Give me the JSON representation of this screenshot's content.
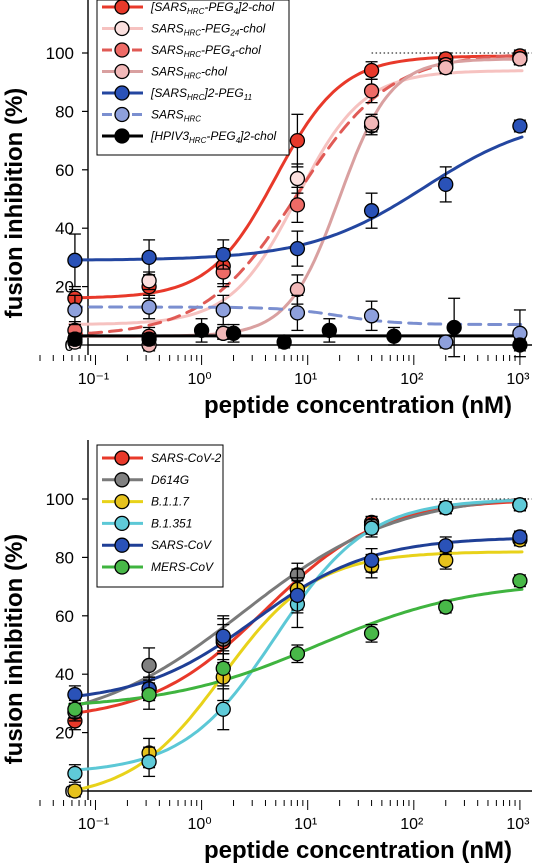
{
  "chart_data": [
    {
      "type": "scatter",
      "title": "",
      "xlabel": "peptide concentration (nM)",
      "ylabel": "fusion inhibition (%)",
      "xscale": "log",
      "xlim": [
        0.03,
        1300
      ],
      "ylim": [
        -5,
        108
      ],
      "x_ticks": [
        0.1,
        1,
        10,
        100,
        1000
      ],
      "x_tick_labels": [
        "10⁻¹",
        "10⁰",
        "10¹",
        "10²",
        "10³"
      ],
      "y_ticks": [
        0,
        20,
        40,
        60,
        80,
        100
      ],
      "reference_line": 100,
      "legend_position": "top-left",
      "series": [
        {
          "name": "[SARSHRC-PEG4]2-chol",
          "legend": {
            "pre": "[SARS",
            "sub": "HRC",
            "mid": "-PEG",
            "sub2": "4",
            "post": "]2-chol"
          },
          "color": "#e8392a",
          "marker_fill": "#e8392a",
          "line": "solid",
          "x": [
            0.064,
            0.32,
            1.6,
            8,
            40,
            200,
            1000
          ],
          "y": [
            16,
            20,
            27,
            70,
            94,
            98,
            99
          ],
          "err": [
            3,
            4,
            6,
            9,
            3,
            2,
            2
          ]
        },
        {
          "name": "SARSHRC-PEG24-chol",
          "legend": {
            "pre": "SARS",
            "sub": "HRC",
            "mid": "-PEG",
            "sub2": "24",
            "post": "-chol"
          },
          "color": "#f6c2c0",
          "marker_fill": "#fbe0df",
          "line": "solid",
          "x": [
            0.064,
            0.32,
            1.6,
            8,
            40,
            200,
            1000
          ],
          "y": [
            1,
            22,
            4,
            57,
            75,
            95,
            98
          ],
          "err": [
            2,
            3,
            2,
            5,
            3,
            2,
            2
          ]
        },
        {
          "name": "SARSHRC-PEG4-chol",
          "legend": {
            "pre": "SARS",
            "sub": "HRC",
            "mid": "-PEG",
            "sub2": "4",
            "post": "-chol"
          },
          "color": "#e05a55",
          "marker_fill": "#ee6b66",
          "line": "dashed",
          "x": [
            0.064,
            0.32,
            1.6,
            8,
            40,
            200,
            1000
          ],
          "y": [
            5,
            3,
            25,
            48,
            87,
            96,
            98
          ],
          "err": [
            3,
            3,
            5,
            6,
            4,
            2,
            2
          ]
        },
        {
          "name": "SARSHRC-chol",
          "legend": {
            "pre": "SARS",
            "sub": "HRC",
            "mid": "-chol",
            "sub2": "",
            "post": ""
          },
          "color": "#d9a0a0",
          "marker_fill": "#f2b8b8",
          "line": "solid",
          "x": [
            0.064,
            0.32,
            1.6,
            8,
            40,
            200,
            1000
          ],
          "y": [
            2,
            0,
            4,
            19,
            76,
            95,
            98
          ],
          "err": [
            2,
            2,
            2,
            5,
            3,
            2,
            2
          ]
        },
        {
          "name": "[SARSHRC]2-PEG11",
          "legend": {
            "pre": "[SARS",
            "sub": "HRC",
            "mid": "]2-PEG",
            "sub2": "11",
            "post": ""
          },
          "color": "#2346a0",
          "marker_fill": "#2a52b8",
          "line": "solid",
          "x": [
            0.064,
            0.32,
            1.6,
            8,
            40,
            200,
            1000
          ],
          "y": [
            29,
            30,
            31,
            33,
            46,
            55,
            75
          ],
          "err": [
            9,
            6,
            5,
            6,
            6,
            6,
            2
          ]
        },
        {
          "name": "SARSHRC",
          "legend": {
            "pre": "SARS",
            "sub": "HRC",
            "mid": "",
            "sub2": "",
            "post": ""
          },
          "color": "#7b8fd0",
          "marker_fill": "#8ea0dc",
          "line": "dashed",
          "x": [
            0.064,
            0.32,
            1.6,
            8,
            40,
            200,
            1000
          ],
          "y": [
            12,
            13,
            12,
            11,
            10,
            1,
            4
          ],
          "err": [
            5,
            4,
            5,
            6,
            5,
            2,
            8
          ]
        },
        {
          "name": "[HPIV3HRC-PEG4]2-chol",
          "legend": {
            "pre": "[HPIV3",
            "sub": "HRC",
            "mid": "-PEG",
            "sub2": "4",
            "post": "]2-chol"
          },
          "color": "#000000",
          "marker_fill": "#000000",
          "line": "solid",
          "x": [
            0.064,
            0.32,
            1.0,
            2.0,
            6.0,
            16,
            65,
            240,
            1000
          ],
          "y": [
            2,
            2,
            5,
            4,
            1,
            5,
            3,
            6,
            0
          ],
          "err": [
            2,
            2,
            4,
            3,
            2,
            4,
            3,
            10,
            2
          ]
        }
      ]
    },
    {
      "type": "scatter",
      "title": "",
      "xlabel": "peptide concentration (nM)",
      "ylabel": "fusion inhibition (%)",
      "xscale": "log",
      "xlim": [
        0.03,
        1300
      ],
      "ylim": [
        -5,
        108
      ],
      "x_ticks": [
        0.1,
        1,
        10,
        100,
        1000
      ],
      "x_tick_labels": [
        "10⁻¹",
        "10⁰",
        "10¹",
        "10²",
        "10³"
      ],
      "y_ticks": [
        0,
        20,
        40,
        60,
        80,
        100
      ],
      "reference_line": 100,
      "legend_position": "top-left",
      "series": [
        {
          "name": "SARS-CoV-2",
          "legend": {
            "pre": "SARS-CoV-2",
            "sub": "",
            "mid": "",
            "sub2": "",
            "post": ""
          },
          "color": "#e8392a",
          "marker_fill": "#e8392a",
          "line": "solid",
          "x": [
            0.064,
            0.32,
            1.6,
            8,
            40,
            200,
            1000
          ],
          "y": [
            24,
            35,
            51,
            69,
            92,
            97,
            98
          ],
          "err": [
            3,
            4,
            6,
            5,
            2,
            2,
            2
          ]
        },
        {
          "name": "D614G",
          "legend": {
            "pre": "D614G",
            "sub": "",
            "mid": "",
            "sub2": "",
            "post": ""
          },
          "color": "#7a7a7a",
          "marker_fill": "#808080",
          "line": "solid",
          "x": [
            0.064,
            0.32,
            1.6,
            8,
            40,
            200,
            1000
          ],
          "y": [
            27,
            43,
            52,
            74,
            91,
            97,
            98
          ],
          "err": [
            3,
            6,
            8,
            4,
            3,
            2,
            2
          ]
        },
        {
          "name": "B.1.1.7",
          "legend": {
            "pre": "B.1.1.7",
            "sub": "",
            "mid": "",
            "sub2": "",
            "post": ""
          },
          "color": "#e8d21a",
          "marker_fill": "#e6c21c",
          "line": "solid",
          "x": [
            0.064,
            0.32,
            1.6,
            8,
            40,
            200,
            1000
          ],
          "y": [
            0,
            13,
            39,
            69,
            77,
            79,
            86
          ],
          "err": [
            2,
            5,
            8,
            7,
            4,
            3,
            2
          ]
        },
        {
          "name": "B.1.351",
          "legend": {
            "pre": "B.1.351",
            "sub": "",
            "mid": "",
            "sub2": "",
            "post": ""
          },
          "color": "#5cc8d6",
          "marker_fill": "#5fcad8",
          "line": "solid",
          "x": [
            0.064,
            0.32,
            1.6,
            8,
            40,
            200,
            1000
          ],
          "y": [
            6,
            10,
            28,
            64,
            90,
            97,
            98
          ],
          "err": [
            3,
            5,
            7,
            8,
            3,
            2,
            2
          ]
        },
        {
          "name": "SARS-CoV",
          "legend": {
            "pre": "SARS-CoV",
            "sub": "",
            "mid": "",
            "sub2": "",
            "post": ""
          },
          "color": "#1f3f96",
          "marker_fill": "#2a52b8",
          "line": "solid",
          "x": [
            0.064,
            0.32,
            1.6,
            8,
            40,
            200,
            1000
          ],
          "y": [
            33,
            35,
            53,
            67,
            79,
            84,
            87
          ],
          "err": [
            3,
            4,
            6,
            6,
            4,
            3,
            2
          ]
        },
        {
          "name": "MERS-CoV",
          "legend": {
            "pre": "MERS-CoV",
            "sub": "",
            "mid": "",
            "sub2": "",
            "post": ""
          },
          "color": "#3fb43f",
          "marker_fill": "#48b848",
          "line": "solid",
          "x": [
            0.064,
            0.32,
            1.6,
            8,
            40,
            200,
            1000
          ],
          "y": [
            28,
            33,
            42,
            47,
            54,
            63,
            72
          ],
          "err": [
            3,
            5,
            6,
            3,
            3,
            2,
            2
          ]
        }
      ]
    }
  ]
}
